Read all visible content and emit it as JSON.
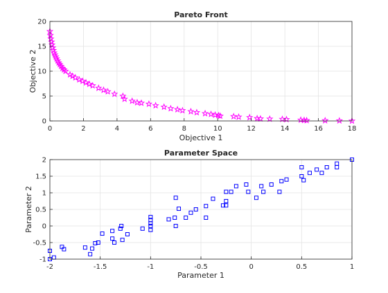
{
  "chart_data": [
    {
      "type": "scatter",
      "title": "Pareto Front",
      "xlabel": "Objective 1",
      "ylabel": "Objective 2",
      "xlim": [
        0,
        18
      ],
      "ylim": [
        0,
        20
      ],
      "xticks": [
        "0",
        "2",
        "4",
        "6",
        "8",
        "10",
        "12",
        "14",
        "16",
        "18"
      ],
      "yticks": [
        "0",
        "5",
        "10",
        "15",
        "20"
      ],
      "grid": true,
      "marker": "star",
      "color": "#ff00ff",
      "series": [
        {
          "x": [
            0.0,
            0.03,
            0.06,
            0.1,
            0.13,
            0.17,
            0.21,
            0.25,
            0.3,
            0.35,
            0.4,
            0.46,
            0.52,
            0.59,
            0.67,
            0.75,
            0.84,
            0.93,
            1.2,
            1.35,
            1.52,
            1.75,
            1.95,
            2.15,
            2.35,
            2.55,
            2.9,
            3.2,
            3.45,
            3.85,
            4.35,
            4.45,
            4.9,
            5.2,
            5.45,
            5.9,
            6.3,
            6.8,
            7.2,
            7.6,
            7.9,
            8.4,
            8.75,
            9.25,
            9.6,
            9.85,
            10.05,
            10.15,
            10.95,
            11.25,
            11.9,
            12.35,
            12.55,
            13.1,
            13.85,
            14.1,
            14.95,
            15.15,
            15.3,
            16.4,
            17.25,
            18.0
          ],
          "y": [
            18.0,
            17.2,
            16.5,
            15.9,
            15.3,
            14.7,
            14.2,
            13.7,
            13.3,
            12.9,
            12.5,
            12.1,
            11.7,
            11.35,
            11.0,
            10.6,
            10.3,
            10.0,
            9.3,
            9.0,
            8.7,
            8.3,
            8.0,
            7.7,
            7.4,
            7.1,
            6.6,
            6.2,
            5.9,
            5.4,
            5.0,
            4.4,
            4.0,
            3.7,
            3.6,
            3.4,
            3.1,
            2.8,
            2.5,
            2.3,
            2.1,
            1.9,
            1.7,
            1.5,
            1.35,
            1.2,
            1.1,
            1.0,
            0.9,
            0.8,
            0.7,
            0.5,
            0.45,
            0.4,
            0.35,
            0.3,
            0.2,
            0.15,
            0.1,
            0.08,
            0.05,
            0.0
          ]
        }
      ]
    },
    {
      "type": "scatter",
      "title": "Parameter Space",
      "xlabel": "Parameter 1",
      "ylabel": "Parameter 2",
      "xlim": [
        -2,
        1
      ],
      "ylim": [
        -1,
        2
      ],
      "xticks": [
        "-2",
        "-1.5",
        "-1",
        "-0.5",
        "0",
        "0.5",
        "1"
      ],
      "yticks": [
        "-1",
        "-0.5",
        "0",
        "0.5",
        "1",
        "1.5",
        "2"
      ],
      "grid": true,
      "marker": "square",
      "color": "#0000ff",
      "series": [
        {
          "x": [
            -2.0,
            -2.0,
            -1.96,
            -1.88,
            -1.86,
            -1.65,
            -1.6,
            -1.58,
            -1.55,
            -1.52,
            -1.48,
            -1.38,
            -1.38,
            -1.36,
            -1.3,
            -1.29,
            -1.28,
            -1.23,
            -1.08,
            -1.0,
            -1.0,
            -1.0,
            -1.0,
            -1.0,
            -0.82,
            -0.76,
            -0.75,
            -0.75,
            -0.72,
            -0.65,
            -0.6,
            -0.55,
            -0.45,
            -0.45,
            -0.38,
            -0.28,
            -0.25,
            -0.25,
            -0.25,
            -0.2,
            -0.15,
            -0.05,
            -0.03,
            0.05,
            0.1,
            0.12,
            0.2,
            0.28,
            0.3,
            0.35,
            0.5,
            0.5,
            0.52,
            0.58,
            0.65,
            0.7,
            0.75,
            0.85,
            0.85,
            1.0
          ],
          "y": [
            -1.0,
            -0.75,
            -0.95,
            -0.63,
            -0.7,
            -0.65,
            -0.85,
            -0.68,
            -0.52,
            -0.5,
            -0.23,
            -0.38,
            -0.15,
            -0.5,
            -0.08,
            0.0,
            -0.42,
            -0.25,
            -0.08,
            -0.12,
            0.0,
            0.08,
            0.18,
            0.27,
            0.2,
            0.25,
            0.0,
            0.85,
            0.52,
            0.25,
            0.4,
            0.5,
            0.6,
            0.25,
            0.82,
            0.62,
            0.75,
            1.03,
            0.62,
            1.03,
            1.2,
            1.25,
            1.03,
            0.85,
            1.2,
            1.03,
            1.25,
            1.03,
            1.35,
            1.4,
            1.77,
            1.5,
            1.38,
            1.6,
            1.7,
            1.6,
            1.77,
            1.77,
            1.88,
            2.0
          ]
        }
      ]
    }
  ]
}
